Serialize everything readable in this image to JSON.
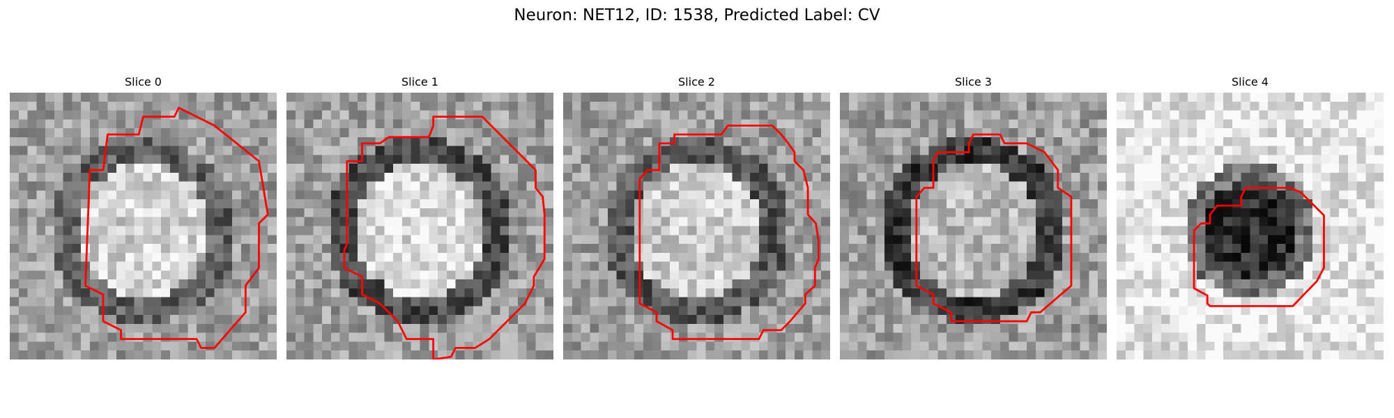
{
  "figure": {
    "title": "Neuron: NET12, ID: 1538, Predicted Label: CV"
  },
  "panels": [
    {
      "title": "Slice 0",
      "seed": 11,
      "dark_ring": true,
      "center_value": 0.82,
      "ring_value": 0.38
    },
    {
      "title": "Slice 1",
      "seed": 23,
      "dark_ring": true,
      "center_value": 0.86,
      "ring_value": 0.3
    },
    {
      "title": "Slice 2",
      "seed": 37,
      "dark_ring": true,
      "center_value": 0.8,
      "ring_value": 0.34
    },
    {
      "title": "Slice 3",
      "seed": 51,
      "dark_ring": true,
      "center_value": 0.72,
      "ring_value": 0.22
    },
    {
      "title": "Slice 4",
      "seed": 67,
      "dark_ring": false,
      "center_value": 0.18,
      "ring_value": 0.9
    }
  ],
  "colors": {
    "contour": "#ff0000",
    "background": "#ffffff"
  }
}
